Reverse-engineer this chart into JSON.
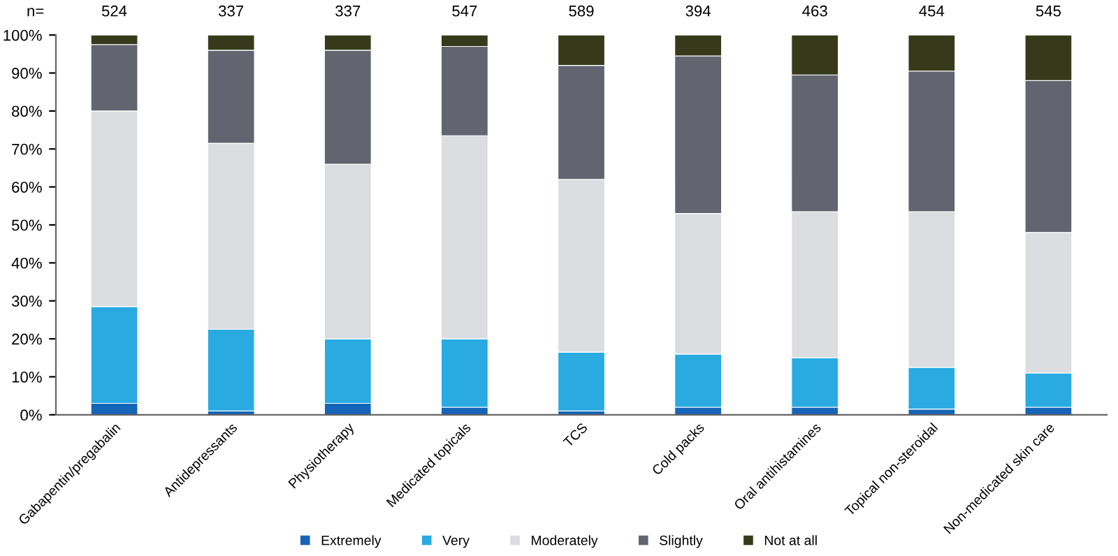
{
  "chart_data": {
    "type": "bar",
    "stacked": true,
    "categories": [
      "Gabapentin/pregabalin",
      "Antidepressants",
      "Physiotherapy",
      "Medicated topicals",
      "TCS",
      "Cold packs",
      "Oral antihistamines",
      "Topical non-steroidal",
      "Non-medicated skin care"
    ],
    "series": [
      {
        "name": "Extremely",
        "color": "#1565b8",
        "values": [
          3,
          1,
          3,
          2,
          1,
          2,
          2,
          1.5,
          2
        ]
      },
      {
        "name": "Very",
        "color": "#29abe2",
        "values": [
          25.5,
          21.5,
          17,
          18,
          15.5,
          14,
          13,
          11,
          9
        ]
      },
      {
        "name": "Moderately",
        "color": "#dcdde1",
        "values": [
          51.5,
          49,
          46,
          53.5,
          45.5,
          37,
          38.5,
          41,
          37
        ]
      },
      {
        "name": "Slightly",
        "color": "#62656f",
        "values": [
          17.5,
          24.5,
          30,
          23.5,
          30,
          41.5,
          36,
          37,
          40
        ]
      },
      {
        "name": "Not at all",
        "color": "#363a1a",
        "values": [
          2.5,
          4,
          4,
          3,
          8,
          5.5,
          10.5,
          9.5,
          12
        ]
      }
    ],
    "ylim": [
      0,
      100
    ],
    "yticks": [
      {
        "value": 0,
        "label": "0%"
      },
      {
        "value": 10,
        "label": "10%"
      },
      {
        "value": 20,
        "label": "20%"
      },
      {
        "value": 30,
        "label": "30%"
      },
      {
        "value": 40,
        "label": "40%"
      },
      {
        "value": 50,
        "label": "50%"
      },
      {
        "value": 60,
        "label": "60%"
      },
      {
        "value": 70,
        "label": "70%"
      },
      {
        "value": 80,
        "label": "80%"
      },
      {
        "value": 90,
        "label": "90%"
      },
      {
        "value": 100,
        "label": "100%"
      }
    ],
    "grid": false,
    "legend": "bottom",
    "annotations": [
      "n=",
      "524",
      "337",
      "337",
      "547",
      "589",
      "394",
      "463",
      "454",
      "545"
    ]
  }
}
